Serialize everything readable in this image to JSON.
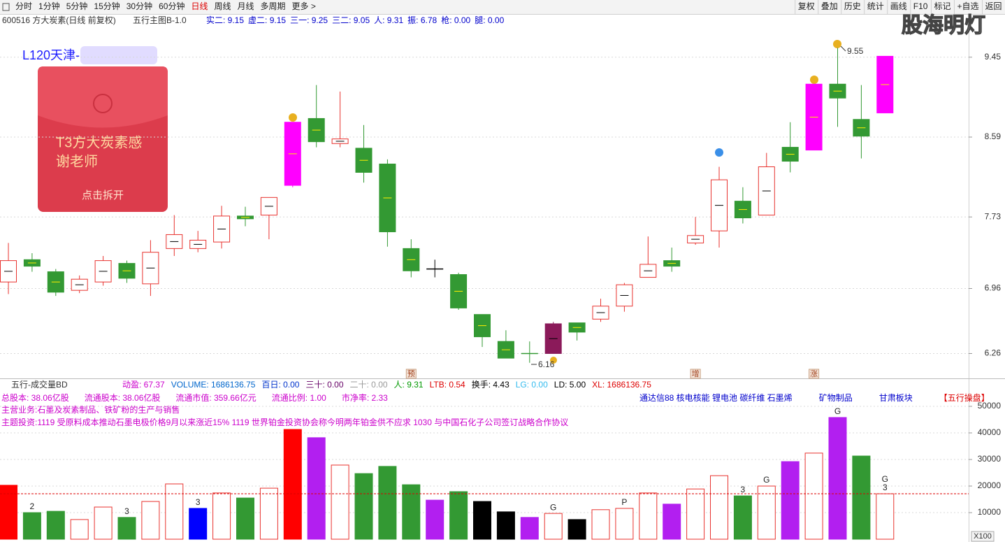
{
  "toolbar": {
    "periods": [
      "分时",
      "1分钟",
      "5分钟",
      "15分钟",
      "30分钟",
      "60分钟",
      "日线",
      "周线",
      "月线",
      "多周期",
      "更多 >"
    ],
    "active": 6,
    "tools": [
      "复权",
      "叠加",
      "历史",
      "统计",
      "画线",
      "F10",
      "标记",
      "+自选",
      "返回"
    ],
    "watermark": "股海明灯"
  },
  "info": {
    "security": "600516 方大炭素(日线 前复权)",
    "indicator_name": "五行主图B-1.0",
    "indicators": [
      "实二: 9.15",
      "虚二: 9.15",
      "三一: 9.25",
      "三二: 9.05",
      "人: 9.31",
      "振: 6.78",
      "枪: 0.00",
      "腿: 0.00"
    ]
  },
  "popup": {
    "header": "L120天津-",
    "message": [
      "T3方大炭素感",
      "谢老师"
    ],
    "button": "点击拆开"
  },
  "volume_panel": {
    "name": "五行-成交量BD",
    "stats": [
      {
        "text": "动盈: 67.37",
        "color": "#cc00cc"
      },
      {
        "text": "VOLUME: 1686136.75",
        "color": "#0066cc"
      },
      {
        "text": "百日: 0.00",
        "color": "#0033cc"
      },
      {
        "text": "三十: 0.00",
        "color": "#660066"
      },
      {
        "text": "二十: 0.00",
        "color": "#999999"
      },
      {
        "text": "人: 9.31",
        "color": "#009900"
      },
      {
        "text": "LTB: 0.54",
        "color": "#dd0000"
      },
      {
        "text": "换手: 4.43",
        "color": "#000000"
      },
      {
        "text": "LG: 0.00",
        "color": "#33bbee"
      },
      {
        "text": "LD: 5.00",
        "color": "#000000"
      },
      {
        "text": "XL: 1686136.75",
        "color": "#dd0000"
      }
    ],
    "fundamentals": [
      "总股本:  38.06亿股",
      "流通股本:  38.06亿股",
      "流通市值:  359.66亿元",
      "流通比例:  1.00",
      "市净率:  2.33"
    ],
    "business": "主营业务:石墨及炭素制品、铁矿粉的生产与销售",
    "themes": "主题投资:1119 受原料成本推动石墨电极价格9月以来涨近15% 1119 世界铂金投资协会称今明两年铂金供不应求 1030 与中国石化子公司签订战略合作协议",
    "sectors": [
      {
        "text": "通达信88 核电核能 锂电池 碳纤维 石墨烯",
        "color": "#0000cc"
      },
      {
        "text": "矿物制品",
        "color": "#0000cc"
      },
      {
        "text": "甘肃板块",
        "color": "#0000cc"
      },
      {
        "text": "【五行操盘】",
        "color": "#dd0000"
      }
    ]
  },
  "chart_data": [
    {
      "type": "candlestick",
      "ylim": [
        6.0,
        9.9
      ],
      "yticks": [
        6.26,
        6.96,
        7.73,
        8.59,
        9.45
      ],
      "grid": true,
      "hollow_color": "#e8322e",
      "open": [
        7.03,
        7.27,
        7.14,
        6.94,
        7.03,
        7.23,
        7.01,
        7.39,
        7.39,
        7.46,
        7.74,
        7.75,
        8.07,
        8.79,
        8.52,
        8.47,
        8.3,
        7.39,
        7.17,
        7.11,
        6.68,
        6.39,
        6.26,
        6.26,
        6.59,
        6.63,
        6.77,
        7.08,
        7.26,
        7.45,
        7.58,
        7.9,
        7.75,
        8.48,
        8.45,
        9.16,
        8.78,
        8.85
      ],
      "high": [
        7.45,
        7.34,
        7.17,
        7.1,
        7.31,
        7.26,
        7.48,
        7.75,
        7.58,
        7.85,
        7.84,
        7.94,
        8.75,
        9.15,
        9.08,
        8.72,
        8.35,
        7.49,
        7.27,
        7.13,
        6.68,
        6.51,
        6.39,
        6.6,
        6.59,
        6.85,
        7.02,
        7.52,
        7.4,
        7.73,
        8.27,
        8.05,
        8.42,
        8.75,
        9.16,
        9.55,
        9.15,
        9.46
      ],
      "low": [
        6.9,
        7.14,
        6.88,
        6.91,
        6.99,
        7.02,
        6.88,
        7.31,
        7.35,
        7.39,
        7.63,
        7.49,
        8.05,
        8.48,
        8.48,
        8.1,
        7.41,
        7.08,
        7.08,
        6.73,
        6.33,
        6.21,
        6.16,
        6.26,
        6.4,
        6.6,
        6.71,
        7.08,
        7.14,
        7.43,
        7.4,
        7.66,
        7.75,
        8.21,
        8.45,
        8.7,
        8.36,
        8.85
      ],
      "close": [
        7.26,
        7.2,
        6.92,
        7.06,
        7.26,
        7.07,
        7.35,
        7.54,
        7.48,
        7.74,
        7.71,
        7.94,
        8.75,
        8.54,
        8.57,
        8.21,
        7.57,
        7.15,
        7.17,
        6.75,
        6.44,
        6.21,
        6.26,
        6.58,
        6.49,
        6.77,
        7.0,
        7.22,
        7.2,
        7.53,
        8.13,
        7.72,
        8.27,
        8.33,
        9.16,
        9.01,
        8.6,
        9.46
      ],
      "colors": [
        "#e8322e",
        "#339933",
        "#339933",
        "#e8322e",
        "#e8322e",
        "#339933",
        "#e8322e",
        "#e8322e",
        "#e8322e",
        "#e8322e",
        "#339933",
        "#e8322e",
        "#ff00ff",
        "#339933",
        "#e8322e",
        "#339933",
        "#339933",
        "#339933",
        "#000000",
        "#339933",
        "#339933",
        "#339933",
        "#339933",
        "#8b1a5a",
        "#339933",
        "#e8322e",
        "#e8322e",
        "#e8322e",
        "#339933",
        "#e8322e",
        "#e8322e",
        "#339933",
        "#e8322e",
        "#339933",
        "#ff00ff",
        "#339933",
        "#339933",
        "#ff00ff"
      ],
      "markers": [
        null,
        null,
        null,
        null,
        null,
        null,
        null,
        null,
        null,
        null,
        null,
        null,
        null,
        null,
        null,
        null,
        null,
        "预",
        null,
        null,
        null,
        null,
        null,
        null,
        null,
        null,
        null,
        null,
        null,
        "增",
        null,
        null,
        null,
        null,
        "涨",
        null,
        null,
        null
      ]
    },
    {
      "type": "bar",
      "ylim": [
        0,
        60000
      ],
      "yticks": [
        10000,
        20000,
        30000,
        40000,
        50000
      ],
      "grid": true,
      "hollow_color": "#e8322e",
      "unit_label": "X100",
      "ma_value": 17100,
      "ma_color": "#dd0000",
      "values": [
        20300,
        10000,
        10500,
        7400,
        12100,
        8200,
        14200,
        20800,
        11600,
        17400,
        15500,
        19200,
        41300,
        38200,
        27900,
        24700,
        27400,
        20500,
        14700,
        17900,
        14200,
        10300,
        8200,
        9700,
        7400,
        11100,
        11600,
        17400,
        13200,
        18900,
        23900,
        16300,
        20000,
        29200,
        32400,
        45800,
        31300,
        17100
      ],
      "colors": [
        "#ff0000",
        "#339933",
        "#339933",
        "#e8322e",
        "#e8322e",
        "#339933",
        "#e8322e",
        "#e8322e",
        "#0000ff",
        "#e8322e",
        "#339933",
        "#e8322e",
        "#ff0000",
        "#b21ff0",
        "#e8322e",
        "#339933",
        "#339933",
        "#339933",
        "#b21ff0",
        "#339933",
        "#000000",
        "#000000",
        "#b21ff0",
        "#e8322e",
        "#000000",
        "#e8322e",
        "#e8322e",
        "#e8322e",
        "#b21ff0",
        "#e8322e",
        "#e8322e",
        "#339933",
        "#e8322e",
        "#b21ff0",
        "#e8322e",
        "#b21ff0",
        "#339933",
        "#e8322e"
      ],
      "labels": [
        null,
        [
          "2"
        ],
        null,
        null,
        null,
        [
          "3"
        ],
        null,
        null,
        [
          "3"
        ],
        null,
        null,
        null,
        null,
        null,
        null,
        null,
        null,
        null,
        null,
        null,
        null,
        null,
        null,
        [
          "G"
        ],
        null,
        null,
        [
          "P"
        ],
        null,
        null,
        null,
        null,
        [
          "3"
        ],
        [
          "G"
        ],
        null,
        null,
        [
          "G"
        ],
        null,
        [
          "G",
          "3"
        ]
      ]
    }
  ]
}
